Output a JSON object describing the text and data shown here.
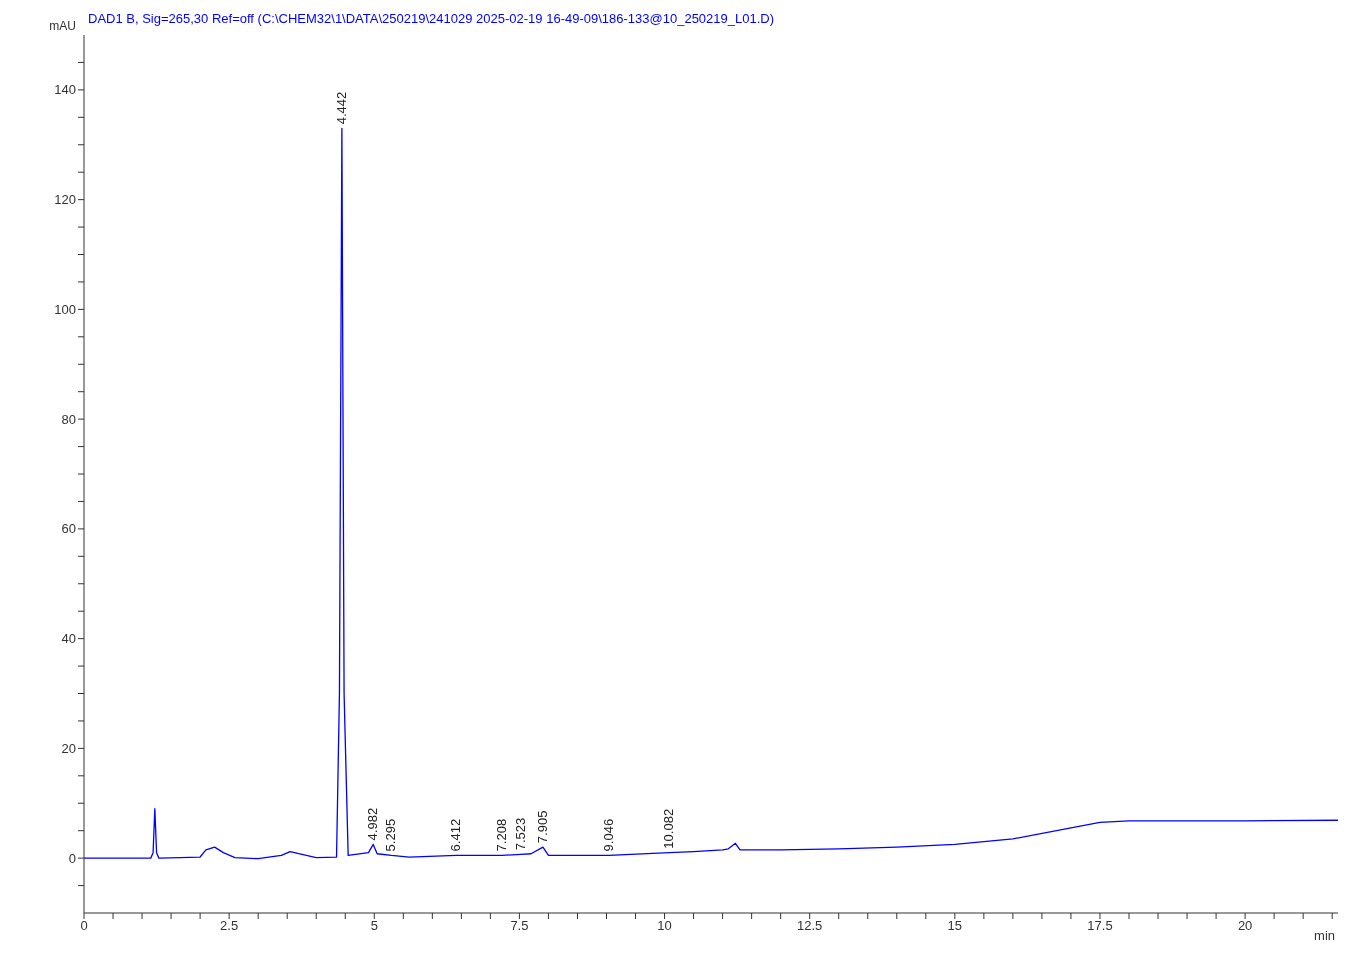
{
  "chart_data": {
    "type": "line",
    "title": "DAD1 B, Sig=265,30 Ref=off (C:\\CHEM32\\1\\DATA\\250219\\241029 2025-02-19 16-49-09\\186-133@10_250219_L01.D)",
    "xlabel": "min",
    "ylabel": "mAU",
    "series": [
      {
        "color": "#0000ff",
        "x": [
          0,
          1.15,
          1.19,
          1.22,
          1.25,
          1.29,
          2.0,
          2.1,
          2.25,
          2.4,
          2.6,
          3.0,
          3.4,
          3.55,
          3.7,
          4.0,
          4.35,
          4.4,
          4.442,
          4.48,
          4.55,
          4.9,
          4.982,
          5.05,
          5.295,
          5.6,
          6.412,
          7.2,
          7.523,
          7.7,
          7.905,
          8.0,
          9.046,
          10.082,
          10.5,
          11.0,
          11.1,
          11.22,
          11.3,
          12,
          13,
          14,
          15,
          16,
          17,
          17.5,
          18,
          20,
          21.6
        ],
        "values": [
          0,
          0,
          1,
          9,
          1,
          0,
          0.2,
          1.5,
          2,
          1,
          0.1,
          -0.1,
          0.5,
          1.2,
          0.8,
          0.1,
          0.2,
          30,
          133,
          30,
          0.5,
          1,
          2.5,
          0.8,
          0.5,
          0.2,
          0.5,
          0.5,
          0.7,
          0.8,
          2,
          0.5,
          0.5,
          1,
          1.2,
          1.5,
          1.7,
          2.7,
          1.5,
          1.5,
          1.7,
          2,
          2.5,
          3.5,
          5.5,
          6.5,
          6.8,
          6.8,
          6.9
        ]
      }
    ],
    "xlim": [
      0,
      21.6
    ],
    "ylim": [
      -10,
      150
    ],
    "xticks": [
      0,
      {
        "value": 0.5,
        "label": null
      },
      {
        "value": 1,
        "label": null
      },
      {
        "value": 1.5,
        "label": null
      },
      {
        "value": 2,
        "label": null
      },
      2.5,
      {
        "value": 3,
        "label": null
      },
      {
        "value": 3.5,
        "label": null
      },
      {
        "value": 4,
        "label": null
      },
      {
        "value": 4.5,
        "label": null
      },
      5,
      {
        "value": 5.5,
        "label": null
      },
      {
        "value": 6,
        "label": null
      },
      {
        "value": 6.5,
        "label": null
      },
      {
        "value": 7,
        "label": null
      },
      7.5,
      {
        "value": 8,
        "label": null
      },
      {
        "value": 8.5,
        "label": null
      },
      {
        "value": 9,
        "label": null
      },
      {
        "value": 9.5,
        "label": null
      },
      10,
      {
        "value": 10.5,
        "label": null
      },
      {
        "value": 11,
        "label": null
      },
      {
        "value": 11.5,
        "label": null
      },
      {
        "value": 12,
        "label": null
      },
      12.5,
      {
        "value": 13,
        "label": null
      },
      {
        "value": 13.5,
        "label": null
      },
      {
        "value": 14,
        "label": null
      },
      {
        "value": 14.5,
        "label": null
      },
      15,
      {
        "value": 15.5,
        "label": null
      },
      {
        "value": 16,
        "label": null
      },
      {
        "value": 16.5,
        "label": null
      },
      {
        "value": 17,
        "label": null
      },
      17.5,
      {
        "value": 18,
        "label": null
      },
      {
        "value": 18.5,
        "label": null
      },
      {
        "value": 19,
        "label": null
      },
      {
        "value": 19.5,
        "label": null
      },
      20,
      {
        "value": 20.5,
        "label": null
      },
      {
        "value": 21,
        "label": null
      },
      {
        "value": 21.5,
        "label": null
      }
    ],
    "yticks": [
      {
        "value": -5,
        "label": null
      },
      0,
      {
        "value": 5,
        "label": null
      },
      {
        "value": 10,
        "label": null
      },
      {
        "value": 15,
        "label": null
      },
      20,
      {
        "value": 25,
        "label": null
      },
      {
        "value": 30,
        "label": null
      },
      {
        "value": 35,
        "label": null
      },
      40,
      {
        "value": 45,
        "label": null
      },
      {
        "value": 50,
        "label": null
      },
      {
        "value": 55,
        "label": null
      },
      60,
      {
        "value": 65,
        "label": null
      },
      {
        "value": 70,
        "label": null
      },
      {
        "value": 75,
        "label": null
      },
      80,
      {
        "value": 85,
        "label": null
      },
      {
        "value": 90,
        "label": null
      },
      {
        "value": 95,
        "label": null
      },
      100,
      {
        "value": 105,
        "label": null
      },
      {
        "value": 110,
        "label": null
      },
      {
        "value": 115,
        "label": null
      },
      120,
      {
        "value": 125,
        "label": null
      },
      {
        "value": 130,
        "label": null
      },
      {
        "value": 135,
        "label": null
      },
      140,
      {
        "value": 145,
        "label": null
      }
    ],
    "annotations": [
      {
        "text": "4.442",
        "x": 4.442,
        "y": 133
      },
      {
        "text": "4.982",
        "x": 4.982,
        "y": 2.5
      },
      {
        "text": "5.295",
        "x": 5.295,
        "y": 0.5
      },
      {
        "text": "6.412",
        "x": 6.412,
        "y": 0.5
      },
      {
        "text": "7.208",
        "x": 7.208,
        "y": 0.5
      },
      {
        "text": "7.523",
        "x": 7.523,
        "y": 0.7
      },
      {
        "text": "7.905",
        "x": 7.905,
        "y": 2
      },
      {
        "text": "9.046",
        "x": 9.046,
        "y": 0.5
      },
      {
        "text": "10.082",
        "x": 10.082,
        "y": 1
      }
    ],
    "grid": false,
    "legend": false,
    "marker": "none",
    "line_style": "solid"
  }
}
